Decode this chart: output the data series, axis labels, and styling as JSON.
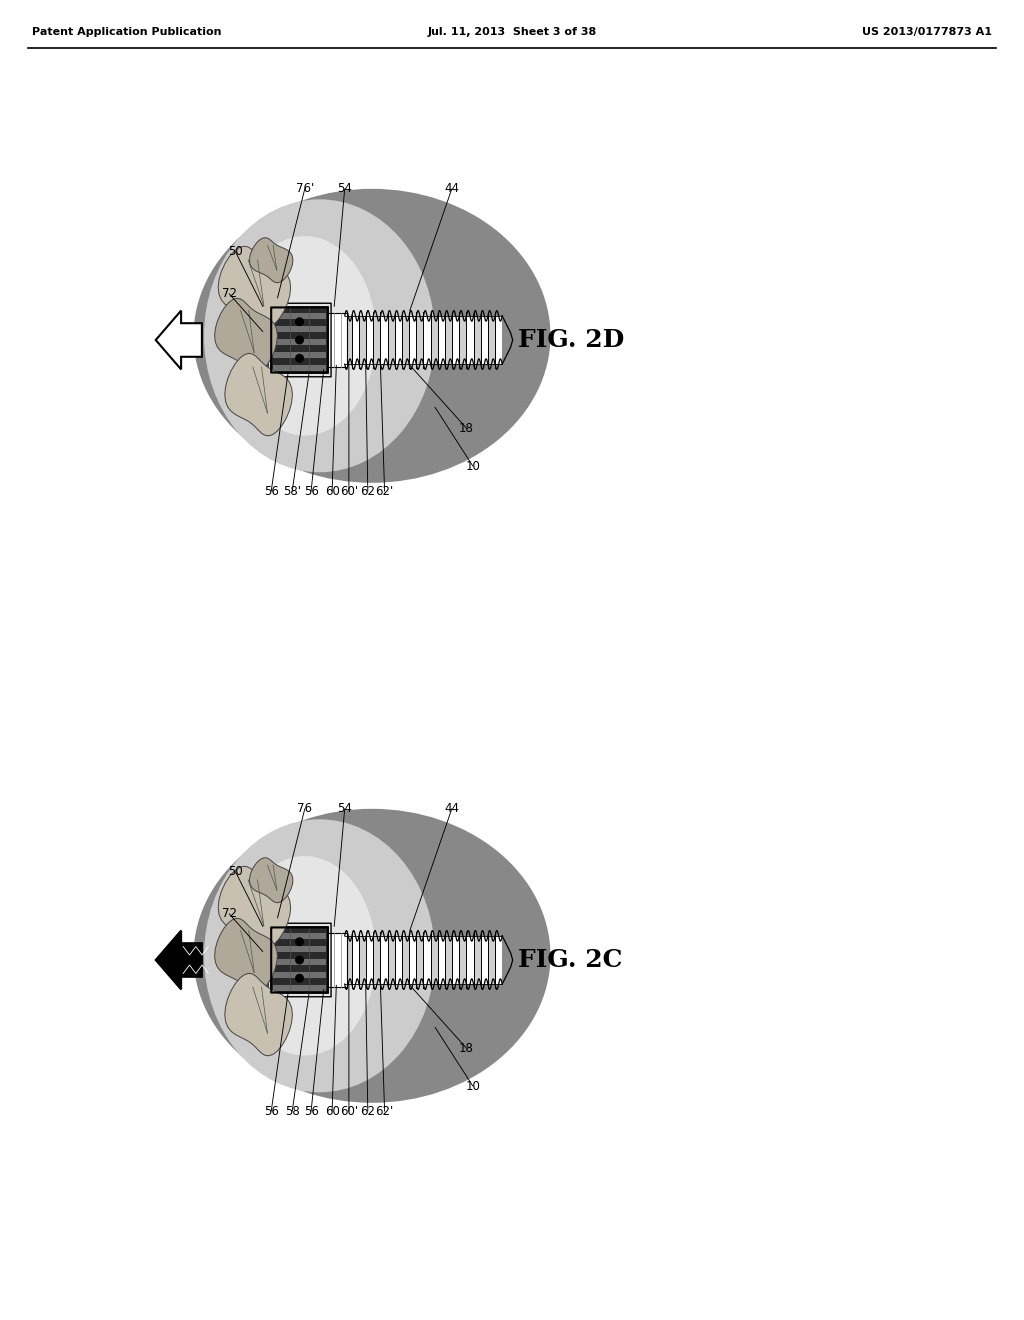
{
  "header_left": "Patent Application Publication",
  "header_mid": "Jul. 11, 2013  Sheet 3 of 38",
  "header_right": "US 2013/0177873 A1",
  "fig_top_label": "FIG. 2D",
  "fig_bot_label": "FIG. 2C",
  "bg_color": "#ffffff",
  "bone_gray": "#888888",
  "tissue_gray": "#cccccc",
  "tissue_light": "#e5e5e5",
  "cap_dark": "#2a2a2a",
  "cap_stripe": "#707070",
  "gum_color": "#c8c0b0",
  "gum_dark": "#b0a898",
  "screw_white": "#f0f0f0",
  "black": "#000000"
}
